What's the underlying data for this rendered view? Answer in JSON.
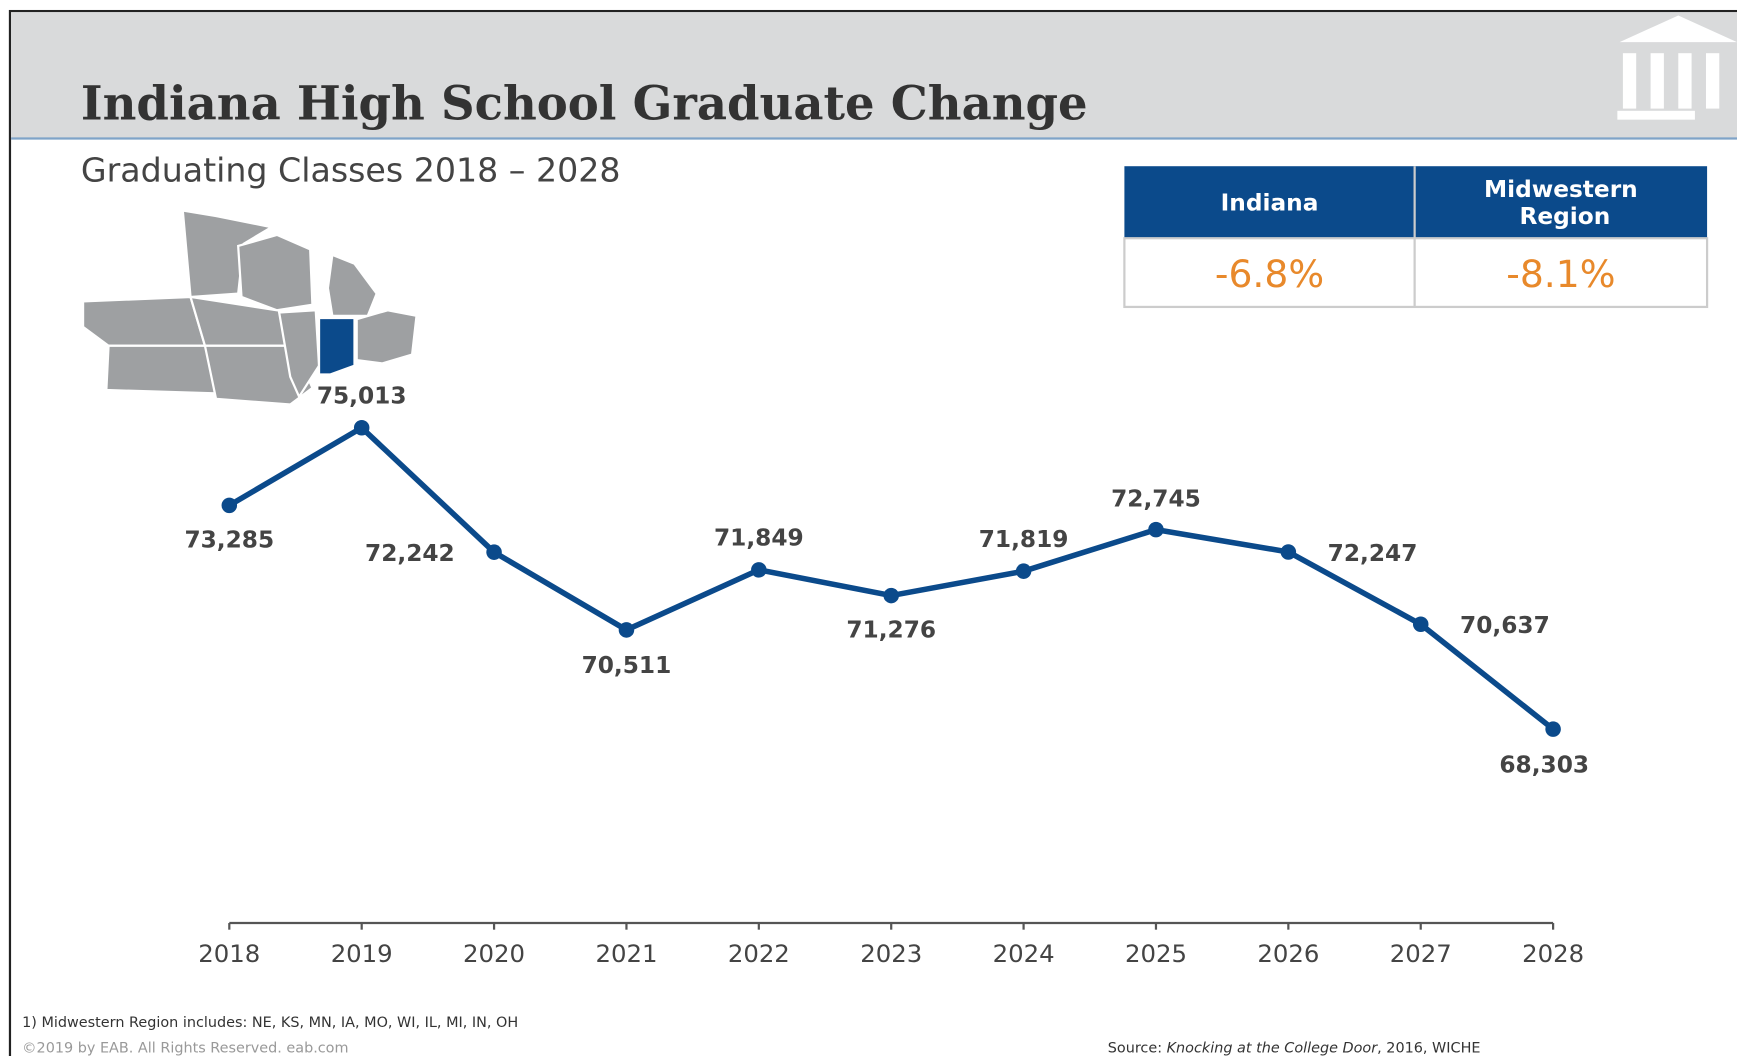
{
  "chart_data": {
    "type": "line",
    "title": "Indiana High School Graduate Change",
    "subtitle": "Graduating Classes 2018 – 2028",
    "categories": [
      "2018",
      "2019",
      "2020",
      "2021",
      "2022",
      "2023",
      "2024",
      "2025",
      "2026",
      "2027",
      "2028"
    ],
    "series": [
      {
        "name": "Indiana",
        "color": "#0b4a8b",
        "values": [
          73285,
          75013,
          72242,
          70511,
          71849,
          71276,
          71819,
          72745,
          72247,
          70637,
          68303
        ],
        "value_labels": [
          "73,285",
          "75,013",
          "72,242",
          "70,511",
          "71,849",
          "71,276",
          "71,819",
          "72,745",
          "72,247",
          "70,637",
          "68,303"
        ]
      }
    ]
  },
  "summary_table": {
    "headers": [
      "Indiana",
      "Midwestern Region"
    ],
    "values": [
      "-6.8%",
      "-8.1%"
    ]
  },
  "footnote": "1)  Midwestern Region includes: NE, KS, MN, IA, MO, WI, IL, MI, IN, OH",
  "copyright": "©2019 by EAB. All Rights Reserved. eab.com",
  "source": {
    "prefix": "Source: ",
    "title": "Knocking at the College Door",
    "suffix": ", 2016, WICHE"
  }
}
